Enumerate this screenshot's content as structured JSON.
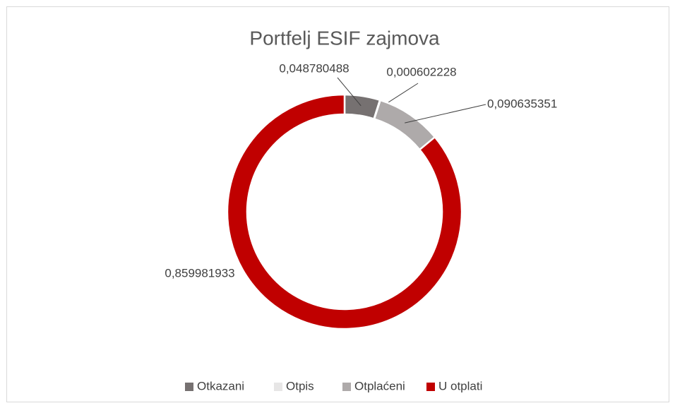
{
  "chart_data": {
    "type": "donut",
    "title": "Portfelj ESIF zajmova",
    "categories": [
      "Otkazani",
      "Otpis",
      "Otplaćeni",
      "U otplati"
    ],
    "values": [
      0.048780488,
      0.000602228,
      0.090635351,
      0.859981933
    ],
    "value_labels": [
      "0,048780488",
      "0,000602228",
      "0,090635351",
      "0,859981933"
    ],
    "colors": [
      "#767171",
      "#e7e6e6",
      "#aeaaaa",
      "#c00000"
    ],
    "legend": "bottom"
  }
}
